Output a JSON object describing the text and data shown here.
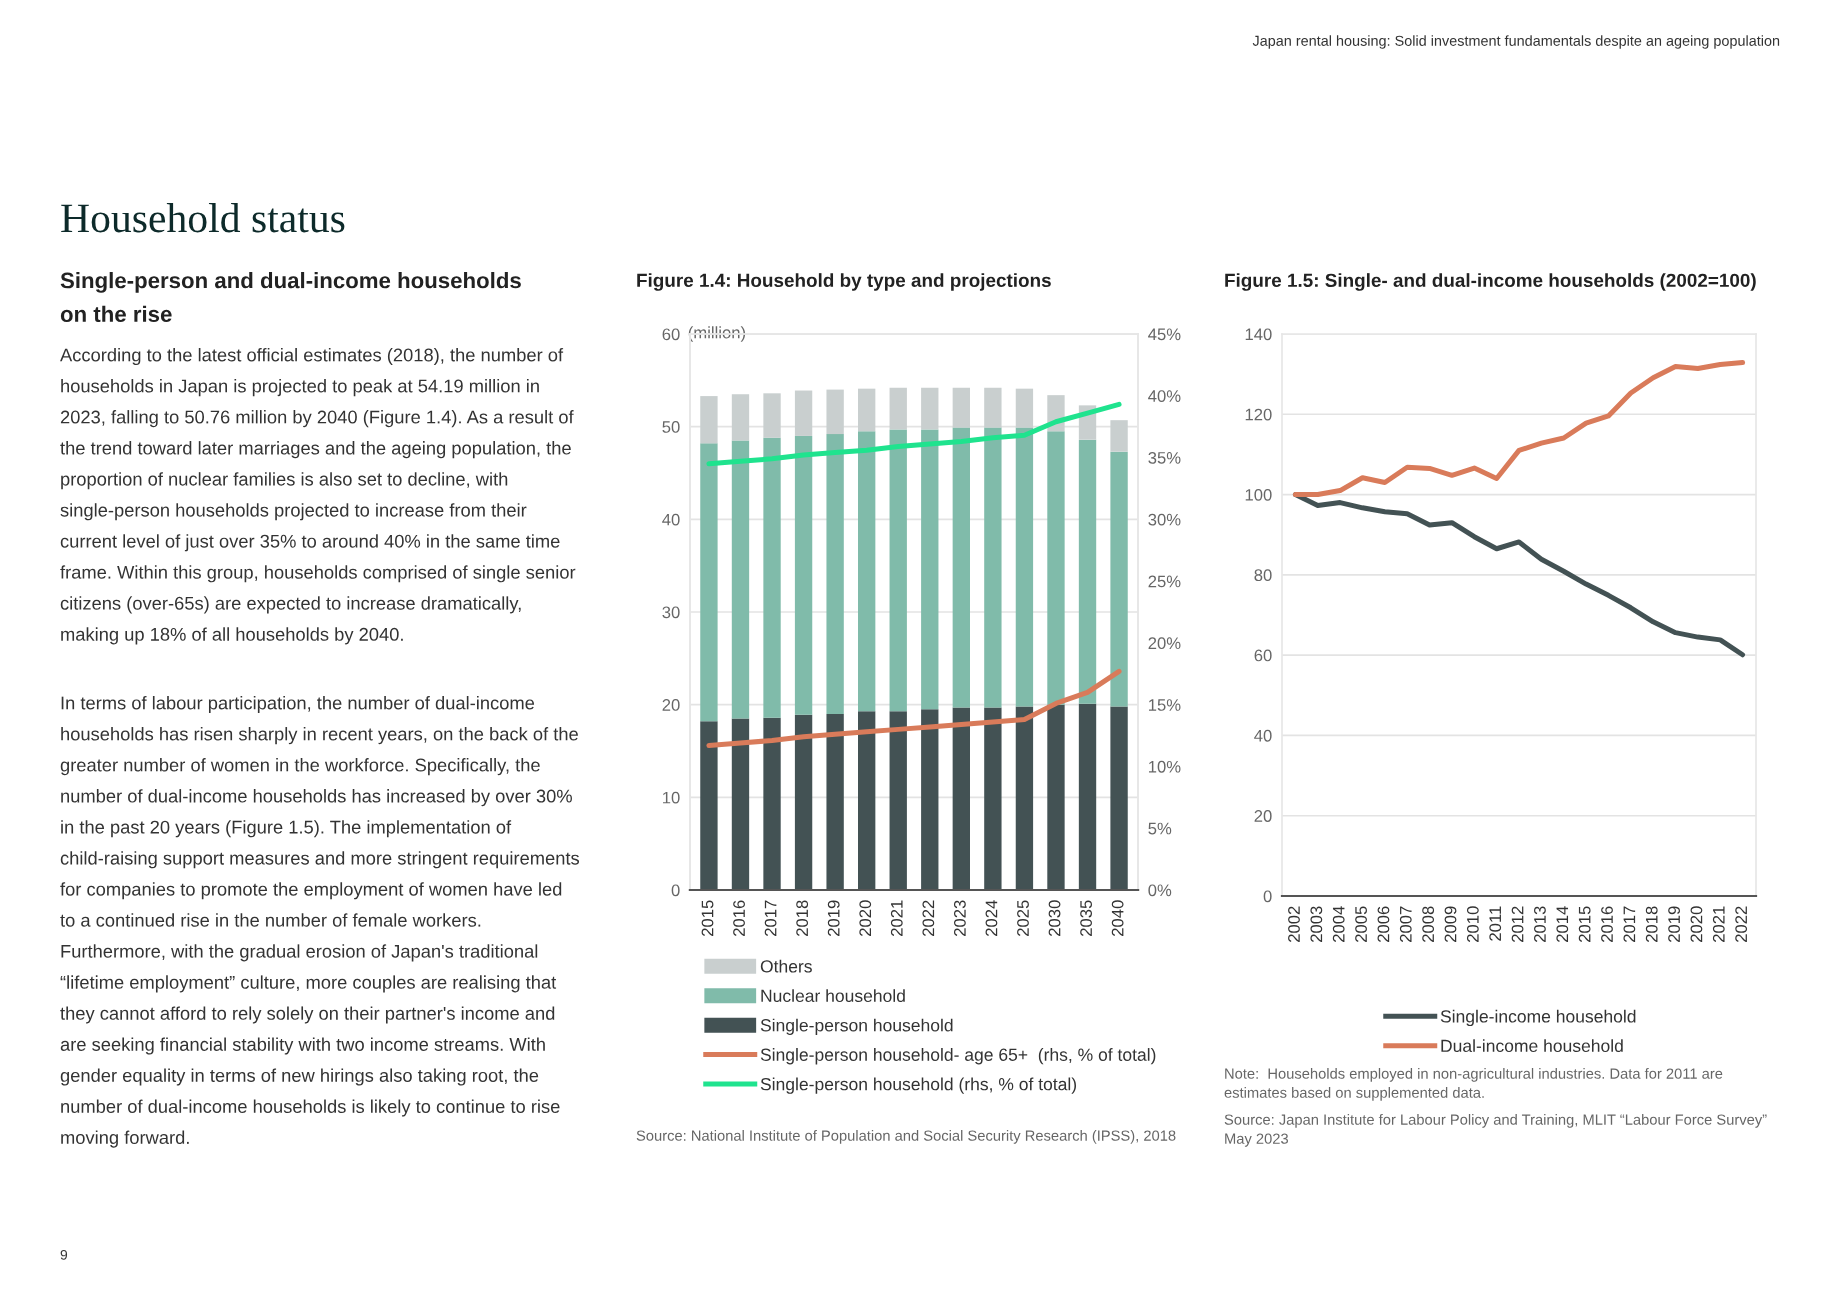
{
  "chart_data": [
    {
      "type": "other",
      "title": "Household status",
      "subtitle": "Single-person and dual-income households on the rise",
      "annotations": [
        "Japan rental housing: Solid investment fundamentals despite an ageing population",
        "According to the latest official estimates (2018), the number of households in Japan is projected to peak at 54.19 million in 2023, falling to 50.76 million by 2040 (Figure 1.4). As a result of the trend toward later marriages and the ageing population, the proportion of nuclear families is also set to decline, with single-person households projected to increase from their current level of just over 35% to around 40% in the same time frame. Within this group, households comprised of single senior citizens (over-65s) are expected to increase dramatically, making up 18% of all households by 2040.",
        "In terms of labour participation, the number of dual-income households has risen sharply in recent years, on the back of the greater number of women in the workforce. Specifically, the number of dual-income households has increased by over 30% in the past 20 years (Figure 1.5). The implementation of child-raising support measures and more stringent requirements for companies to promote the employment of women have led to a continued rise in the number of female workers. Furthermore, with the gradual erosion of Japan's traditional “lifetime employment” culture, more couples are realising that they cannot afford to rely solely on their partner's income and are seeking financial stability with two income streams. With gender equality in terms of new hirings also taking root, the number of dual-income households is likely to continue to rise moving forward.",
        "9"
      ]
    },
    {
      "type": "bar",
      "stacked": true,
      "title": "Figure 1.4: Household by type and projections",
      "ylabel": "(million)",
      "categories": [
        "2015",
        "2016",
        "2017",
        "2018",
        "2019",
        "2020",
        "2021",
        "2022",
        "2023",
        "2024",
        "2025",
        "2030",
        "2035",
        "2040"
      ],
      "series": [
        {
          "name": "Single-person household",
          "color": "#435254",
          "values": [
            18.2,
            18.5,
            18.6,
            18.9,
            19.0,
            19.3,
            19.3,
            19.5,
            19.7,
            19.7,
            19.8,
            20.0,
            20.1,
            19.8
          ]
        },
        {
          "name": "Nuclear household",
          "color": "#80bbaa",
          "values": [
            30.0,
            30.0,
            30.2,
            30.1,
            30.2,
            30.2,
            30.4,
            30.2,
            30.2,
            30.2,
            30.1,
            29.5,
            28.5,
            27.5
          ]
        },
        {
          "name": "Others",
          "color": "#c9cfcf",
          "values": [
            5.1,
            5.0,
            4.8,
            4.9,
            4.8,
            4.6,
            4.5,
            4.5,
            4.3,
            4.3,
            4.2,
            3.9,
            3.7,
            3.4
          ]
        },
        {
          "name": "Single-person household- age 65+  (rhs, % of total)",
          "type": "line",
          "axis": "y2",
          "color": "#d97b5a",
          "values": [
            11.7,
            11.9,
            12.1,
            12.4,
            12.6,
            12.8,
            13.0,
            13.2,
            13.4,
            13.6,
            13.8,
            15.1,
            16.0,
            17.7
          ]
        },
        {
          "name": "Single-person household (rhs, % of total)",
          "type": "line",
          "axis": "y2",
          "color": "#1fe38e",
          "values": [
            34.5,
            34.7,
            34.9,
            35.2,
            35.4,
            35.6,
            35.9,
            36.1,
            36.3,
            36.6,
            36.8,
            37.9,
            38.6,
            39.3
          ]
        }
      ],
      "ylim": [
        0,
        60
      ],
      "yticks": [
        0,
        10,
        20,
        30,
        40,
        50,
        60
      ],
      "y2lim": [
        0,
        45
      ],
      "y2ticks": [
        {
          "value": 0,
          "label": "0%"
        },
        {
          "value": 5,
          "label": "5%"
        },
        {
          "value": 10,
          "label": "10%"
        },
        {
          "value": 15,
          "label": "15%"
        },
        {
          "value": 20,
          "label": "20%"
        },
        {
          "value": 25,
          "label": "25%"
        },
        {
          "value": 30,
          "label": "30%"
        },
        {
          "value": 35,
          "label": "35%"
        },
        {
          "value": 40,
          "label": "40%"
        },
        {
          "value": 45,
          "label": "45%"
        }
      ],
      "grid": "y",
      "legend": "bottom",
      "annotations": [
        "Source: National Institute of Population and Social Security Research (IPSS), 2018"
      ]
    },
    {
      "type": "line",
      "title": "Figure 1.5: Single- and dual-income households (2002=100)",
      "categories": [
        "2002",
        "2003",
        "2004",
        "2005",
        "2006",
        "2007",
        "2008",
        "2009",
        "2010",
        "2011",
        "2012",
        "2013",
        "2014",
        "2015",
        "2016",
        "2017",
        "2018",
        "2019",
        "2020",
        "2021",
        "2022"
      ],
      "series": [
        {
          "name": "Single-income household",
          "color": "#435254",
          "values": [
            100,
            97.3,
            98,
            96.7,
            95.7,
            95.2,
            92.4,
            93,
            89.5,
            86.5,
            88.2,
            83.9,
            80.9,
            77.7,
            74.9,
            71.8,
            68.3,
            65.6,
            64.5,
            63.8,
            60.1
          ]
        },
        {
          "name": "Dual-income household",
          "color": "#d97b5a",
          "values": [
            100,
            100,
            101,
            104.2,
            103,
            106.8,
            106.5,
            104.8,
            106.6,
            104,
            111,
            112.8,
            114.1,
            117.8,
            119.6,
            125.3,
            129.1,
            131.9,
            131.4,
            132.4,
            132.9
          ]
        }
      ],
      "ylim": [
        0,
        140
      ],
      "yticks": [
        0,
        20,
        40,
        60,
        80,
        100,
        120,
        140
      ],
      "grid": "y",
      "legend": "bottom",
      "annotations": [
        "Note:  Households employed in non-agricultural industries. Data for 2011 are estimates based on supplemented data.",
        "Source: Japan Institute for Labour Policy and Training, MLIT “Labour Force Survey” May 2023"
      ]
    }
  ]
}
